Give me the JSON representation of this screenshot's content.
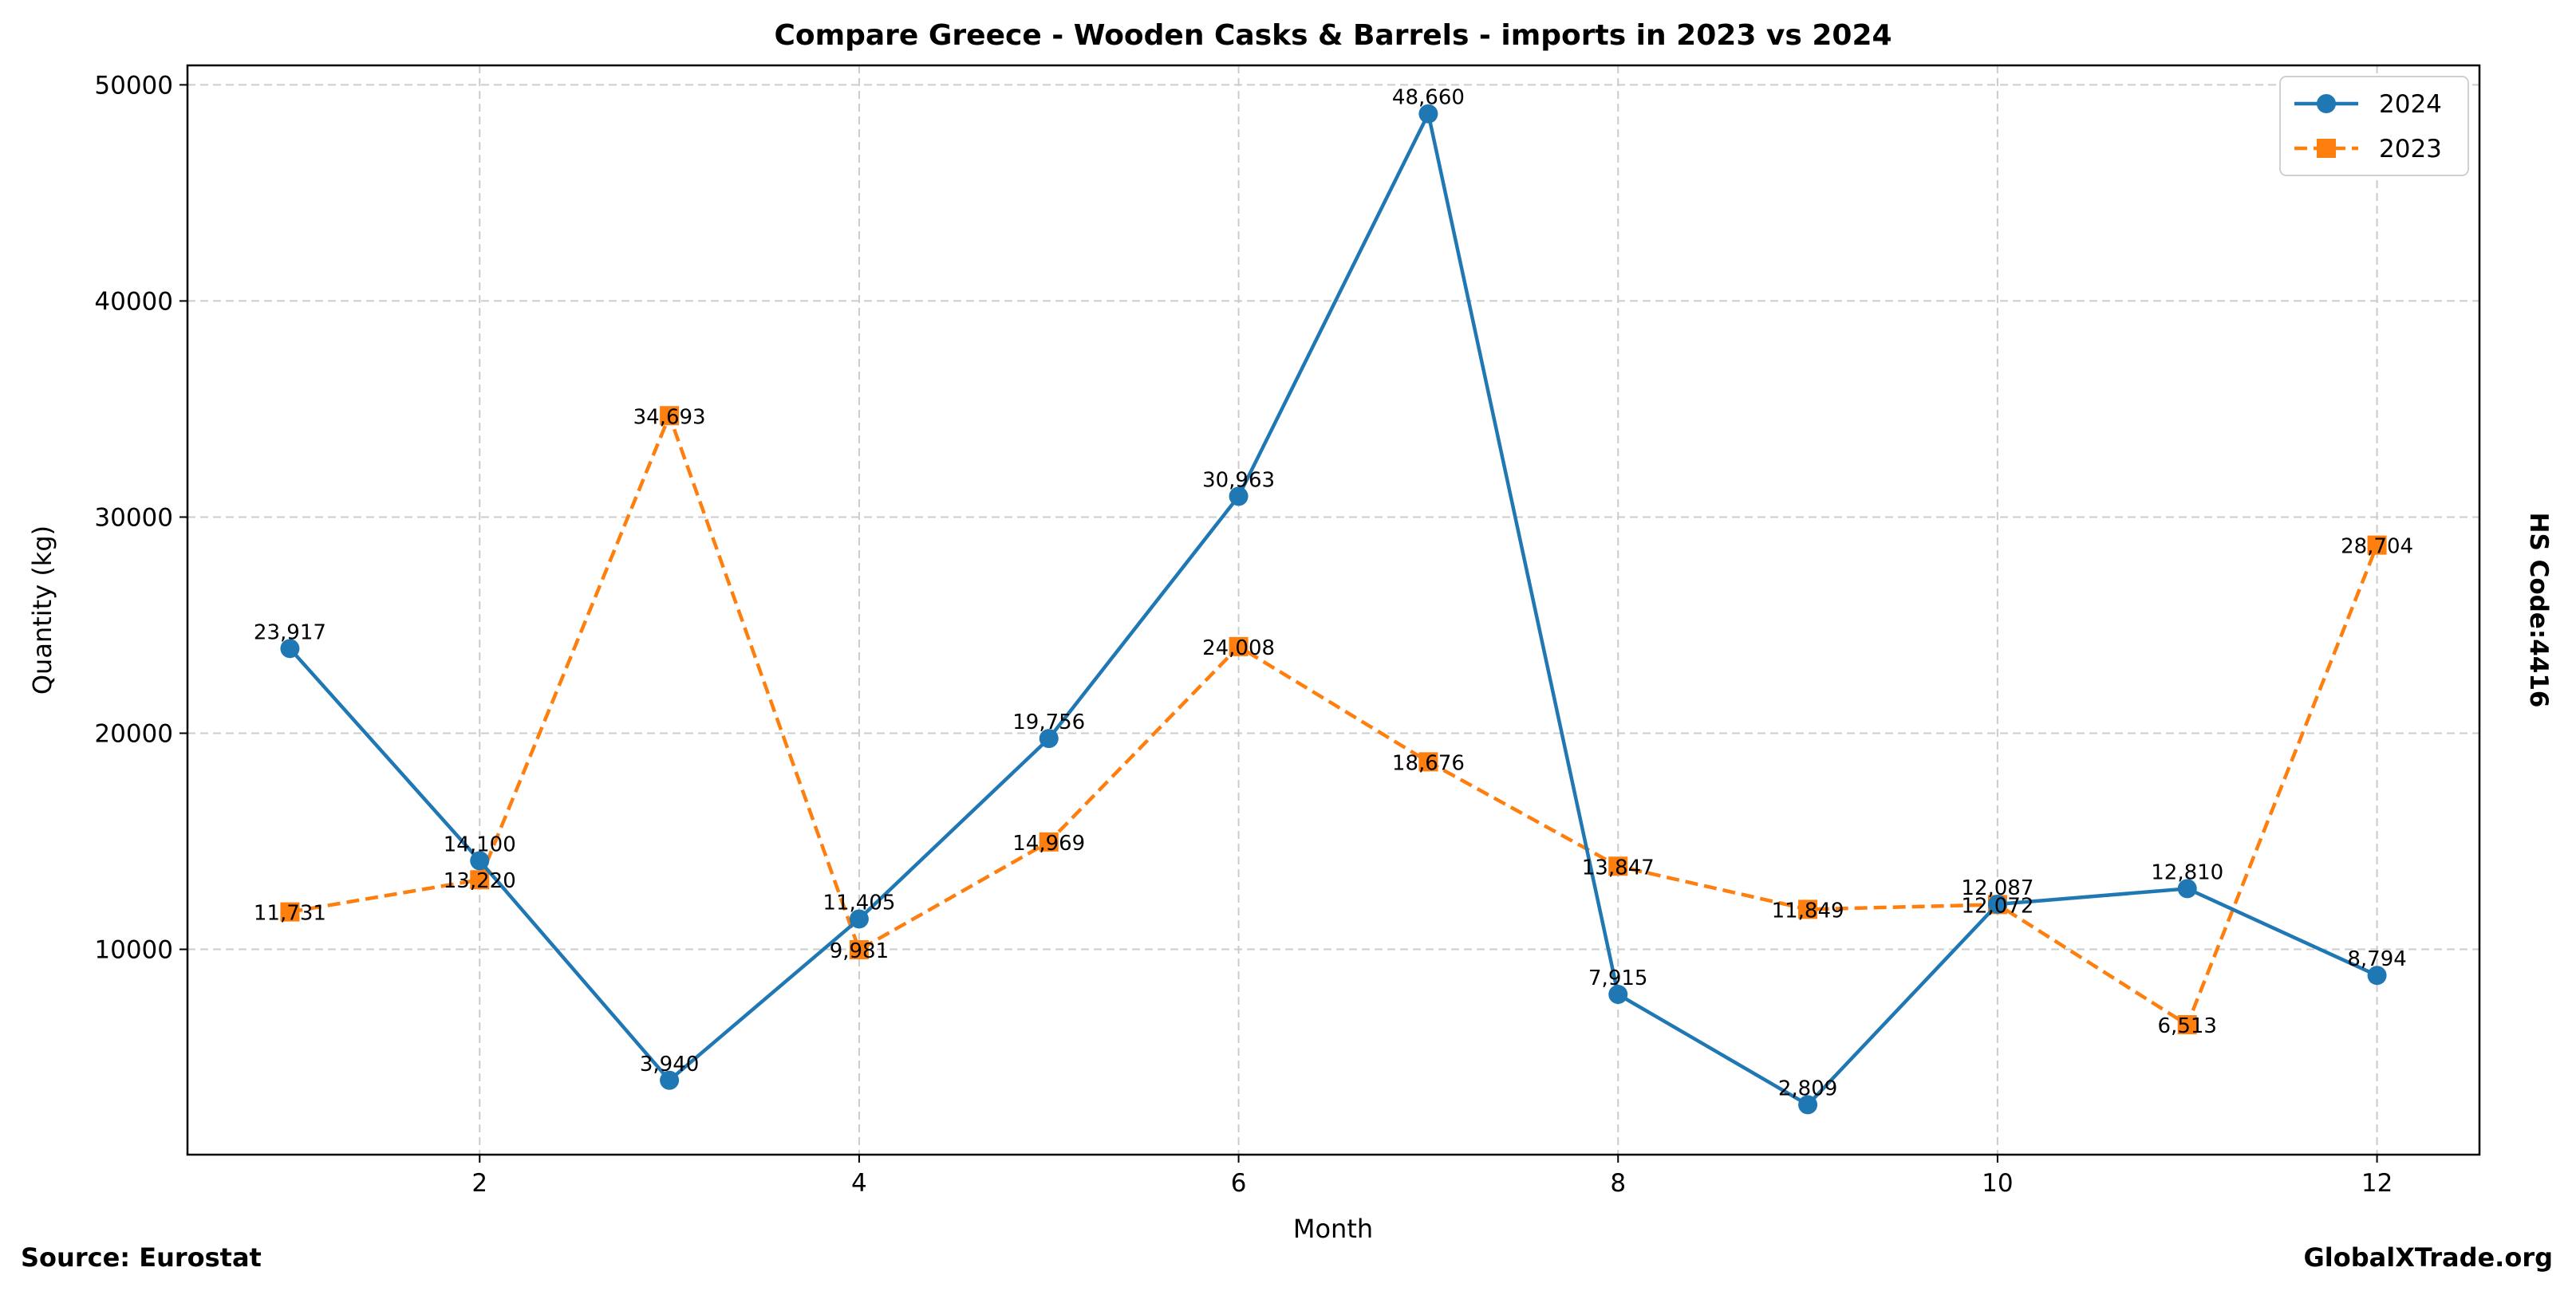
{
  "chart_data": {
    "type": "line",
    "title": "Compare Greece - Wooden Casks & Barrels - imports in 2023 vs 2024",
    "xlabel": "Month",
    "ylabel": "Quantity (kg)",
    "right_label": "HS Code:4416",
    "source": "Source: Eurostat",
    "brand": "GlobalXTrade.org",
    "x": [
      1,
      2,
      3,
      4,
      5,
      6,
      7,
      8,
      9,
      10,
      11,
      12
    ],
    "xticks": [
      2,
      4,
      6,
      8,
      10,
      12
    ],
    "yticks": [
      10000,
      20000,
      30000,
      40000,
      50000
    ],
    "xlim": [
      0.46,
      12.54
    ],
    "ylim": [
      500,
      50900
    ],
    "grid": true,
    "legend_position": "top-right",
    "series": [
      {
        "name": "2024",
        "color": "#1f77b4",
        "marker": "circle",
        "dash": false,
        "values": [
          23917,
          14100,
          3940,
          11405,
          19756,
          30963,
          48660,
          7915,
          2809,
          12087,
          12810,
          8794
        ],
        "labels": [
          "23,917",
          "14,100",
          "3,940",
          "11,405",
          "19,756",
          "30,963",
          "48,660",
          "7,915",
          "2,809",
          "12,087",
          "12,810",
          "8,794"
        ]
      },
      {
        "name": "2023",
        "color": "#ff7f0e",
        "marker": "square",
        "dash": true,
        "values": [
          11731,
          13220,
          34693,
          9981,
          14969,
          24008,
          18676,
          13847,
          11849,
          12072,
          6513,
          28704
        ],
        "labels": [
          "11,731",
          "13,220",
          "34,693",
          "9,981",
          "14,969",
          "24,008",
          "18,676",
          "13,847",
          "11,849",
          "12,072",
          "6,513",
          "28,704"
        ]
      }
    ]
  }
}
